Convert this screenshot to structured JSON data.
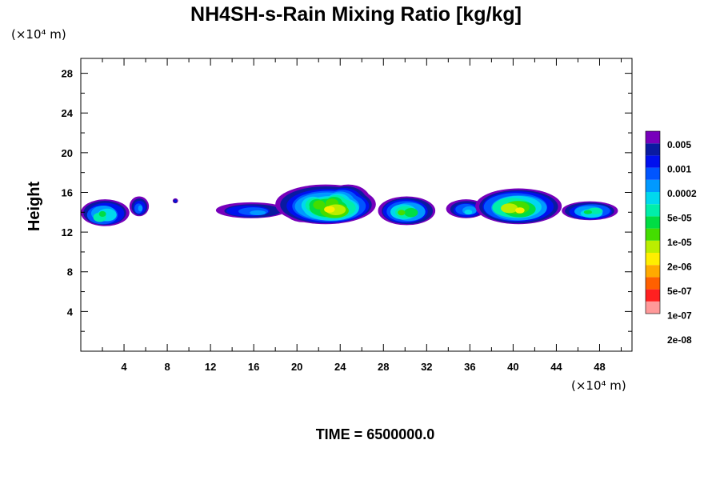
{
  "chart_data": {
    "type": "heatmap",
    "title": "NH4SH-s-Rain Mixing Ratio [kg/kg]",
    "y_scale_label": "(×10⁴ m)",
    "x_scale_label": "(×10⁴ m)",
    "ylabel": "Height",
    "xlabel": "",
    "xlim": [
      0,
      51
    ],
    "ylim": [
      0,
      29.5
    ],
    "x_ticks": [
      4,
      8,
      12,
      16,
      20,
      24,
      28,
      32,
      36,
      40,
      44,
      48
    ],
    "y_ticks": [
      4,
      8,
      12,
      16,
      20,
      24,
      28
    ],
    "legend": {
      "placement": "right",
      "labels": [
        "0.005",
        "0.001",
        "0.0002",
        "5e-05",
        "1e-05",
        "2e-06",
        "5e-07",
        "1e-07",
        "2e-08"
      ],
      "colors": [
        "#ff9999",
        "#ff2020",
        "#ff6000",
        "#ffaa00",
        "#ffee00",
        "#bbee00",
        "#44dd00",
        "#00dd44",
        "#00eeaa",
        "#00d8ee",
        "#0099ff",
        "#0055ff",
        "#0010ee",
        "#0a1aa0",
        "#7700bb"
      ]
    },
    "clouds": [
      {
        "x": [
          0,
          4.5
        ],
        "y": [
          12.6,
          15.3
        ],
        "peak_level": 7
      },
      {
        "x": [
          4.5,
          6.3
        ],
        "y": [
          13.6,
          15.6
        ],
        "peak_level": 4
      },
      {
        "x": [
          8.5,
          9.0
        ],
        "y": [
          14.9,
          15.4
        ],
        "peak_level": 2
      },
      {
        "x": [
          12.5,
          19.0
        ],
        "y": [
          13.4,
          15.0
        ],
        "peak_level": 4
      },
      {
        "x": [
          18.0,
          27.3
        ],
        "y": [
          12.8,
          16.8
        ],
        "peak_level": 10
      },
      {
        "x": [
          27.5,
          32.8
        ],
        "y": [
          12.7,
          15.6
        ],
        "peak_level": 8
      },
      {
        "x": [
          33.8,
          37.5
        ],
        "y": [
          13.4,
          15.3
        ],
        "peak_level": 5
      },
      {
        "x": [
          36.5,
          44.5
        ],
        "y": [
          12.8,
          16.4
        ],
        "peak_level": 10
      },
      {
        "x": [
          44.5,
          49.7
        ],
        "y": [
          13.2,
          15.1
        ],
        "peak_level": 7
      }
    ],
    "time_label": "TIME = 6500000.0"
  }
}
